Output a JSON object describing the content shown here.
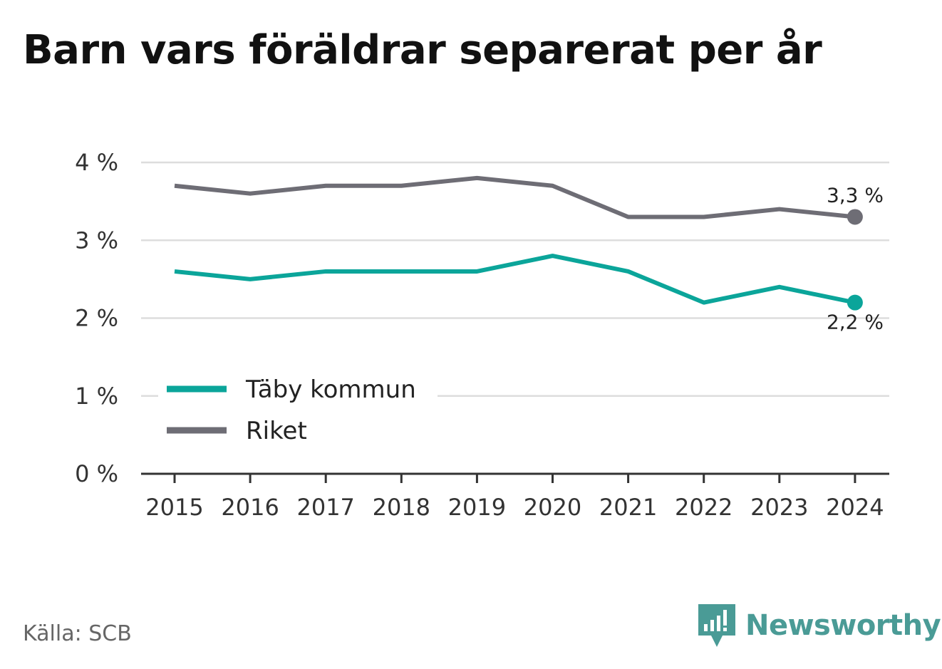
{
  "chart_data": {
    "type": "line",
    "title": "Barn vars föräldrar separerat per år",
    "x": [
      "2015",
      "2016",
      "2017",
      "2018",
      "2019",
      "2020",
      "2021",
      "2022",
      "2023",
      "2024"
    ],
    "series": [
      {
        "name": "Täby kommun",
        "color": "#0ba59a",
        "values": [
          2.6,
          2.5,
          2.6,
          2.6,
          2.6,
          2.8,
          2.6,
          2.2,
          2.4,
          2.2
        ],
        "end_label": "2,2 %"
      },
      {
        "name": "Riket",
        "color": "#6e6d75",
        "values": [
          3.7,
          3.6,
          3.7,
          3.7,
          3.8,
          3.7,
          3.3,
          3.3,
          3.4,
          3.3
        ],
        "end_label": "3,3 %"
      }
    ],
    "yticks": [
      0,
      1,
      2,
      3,
      4
    ],
    "ytick_labels": [
      "0 %",
      "1 %",
      "2 %",
      "3 %",
      "4 %"
    ],
    "ylim": [
      0,
      4
    ],
    "grid": "horizontal",
    "legend_position": "bottom-left"
  },
  "footer": {
    "source": "Källa: SCB",
    "brand": "Newsworthy"
  },
  "icons": {
    "brand_logo": "newsworthy-logo-icon"
  }
}
